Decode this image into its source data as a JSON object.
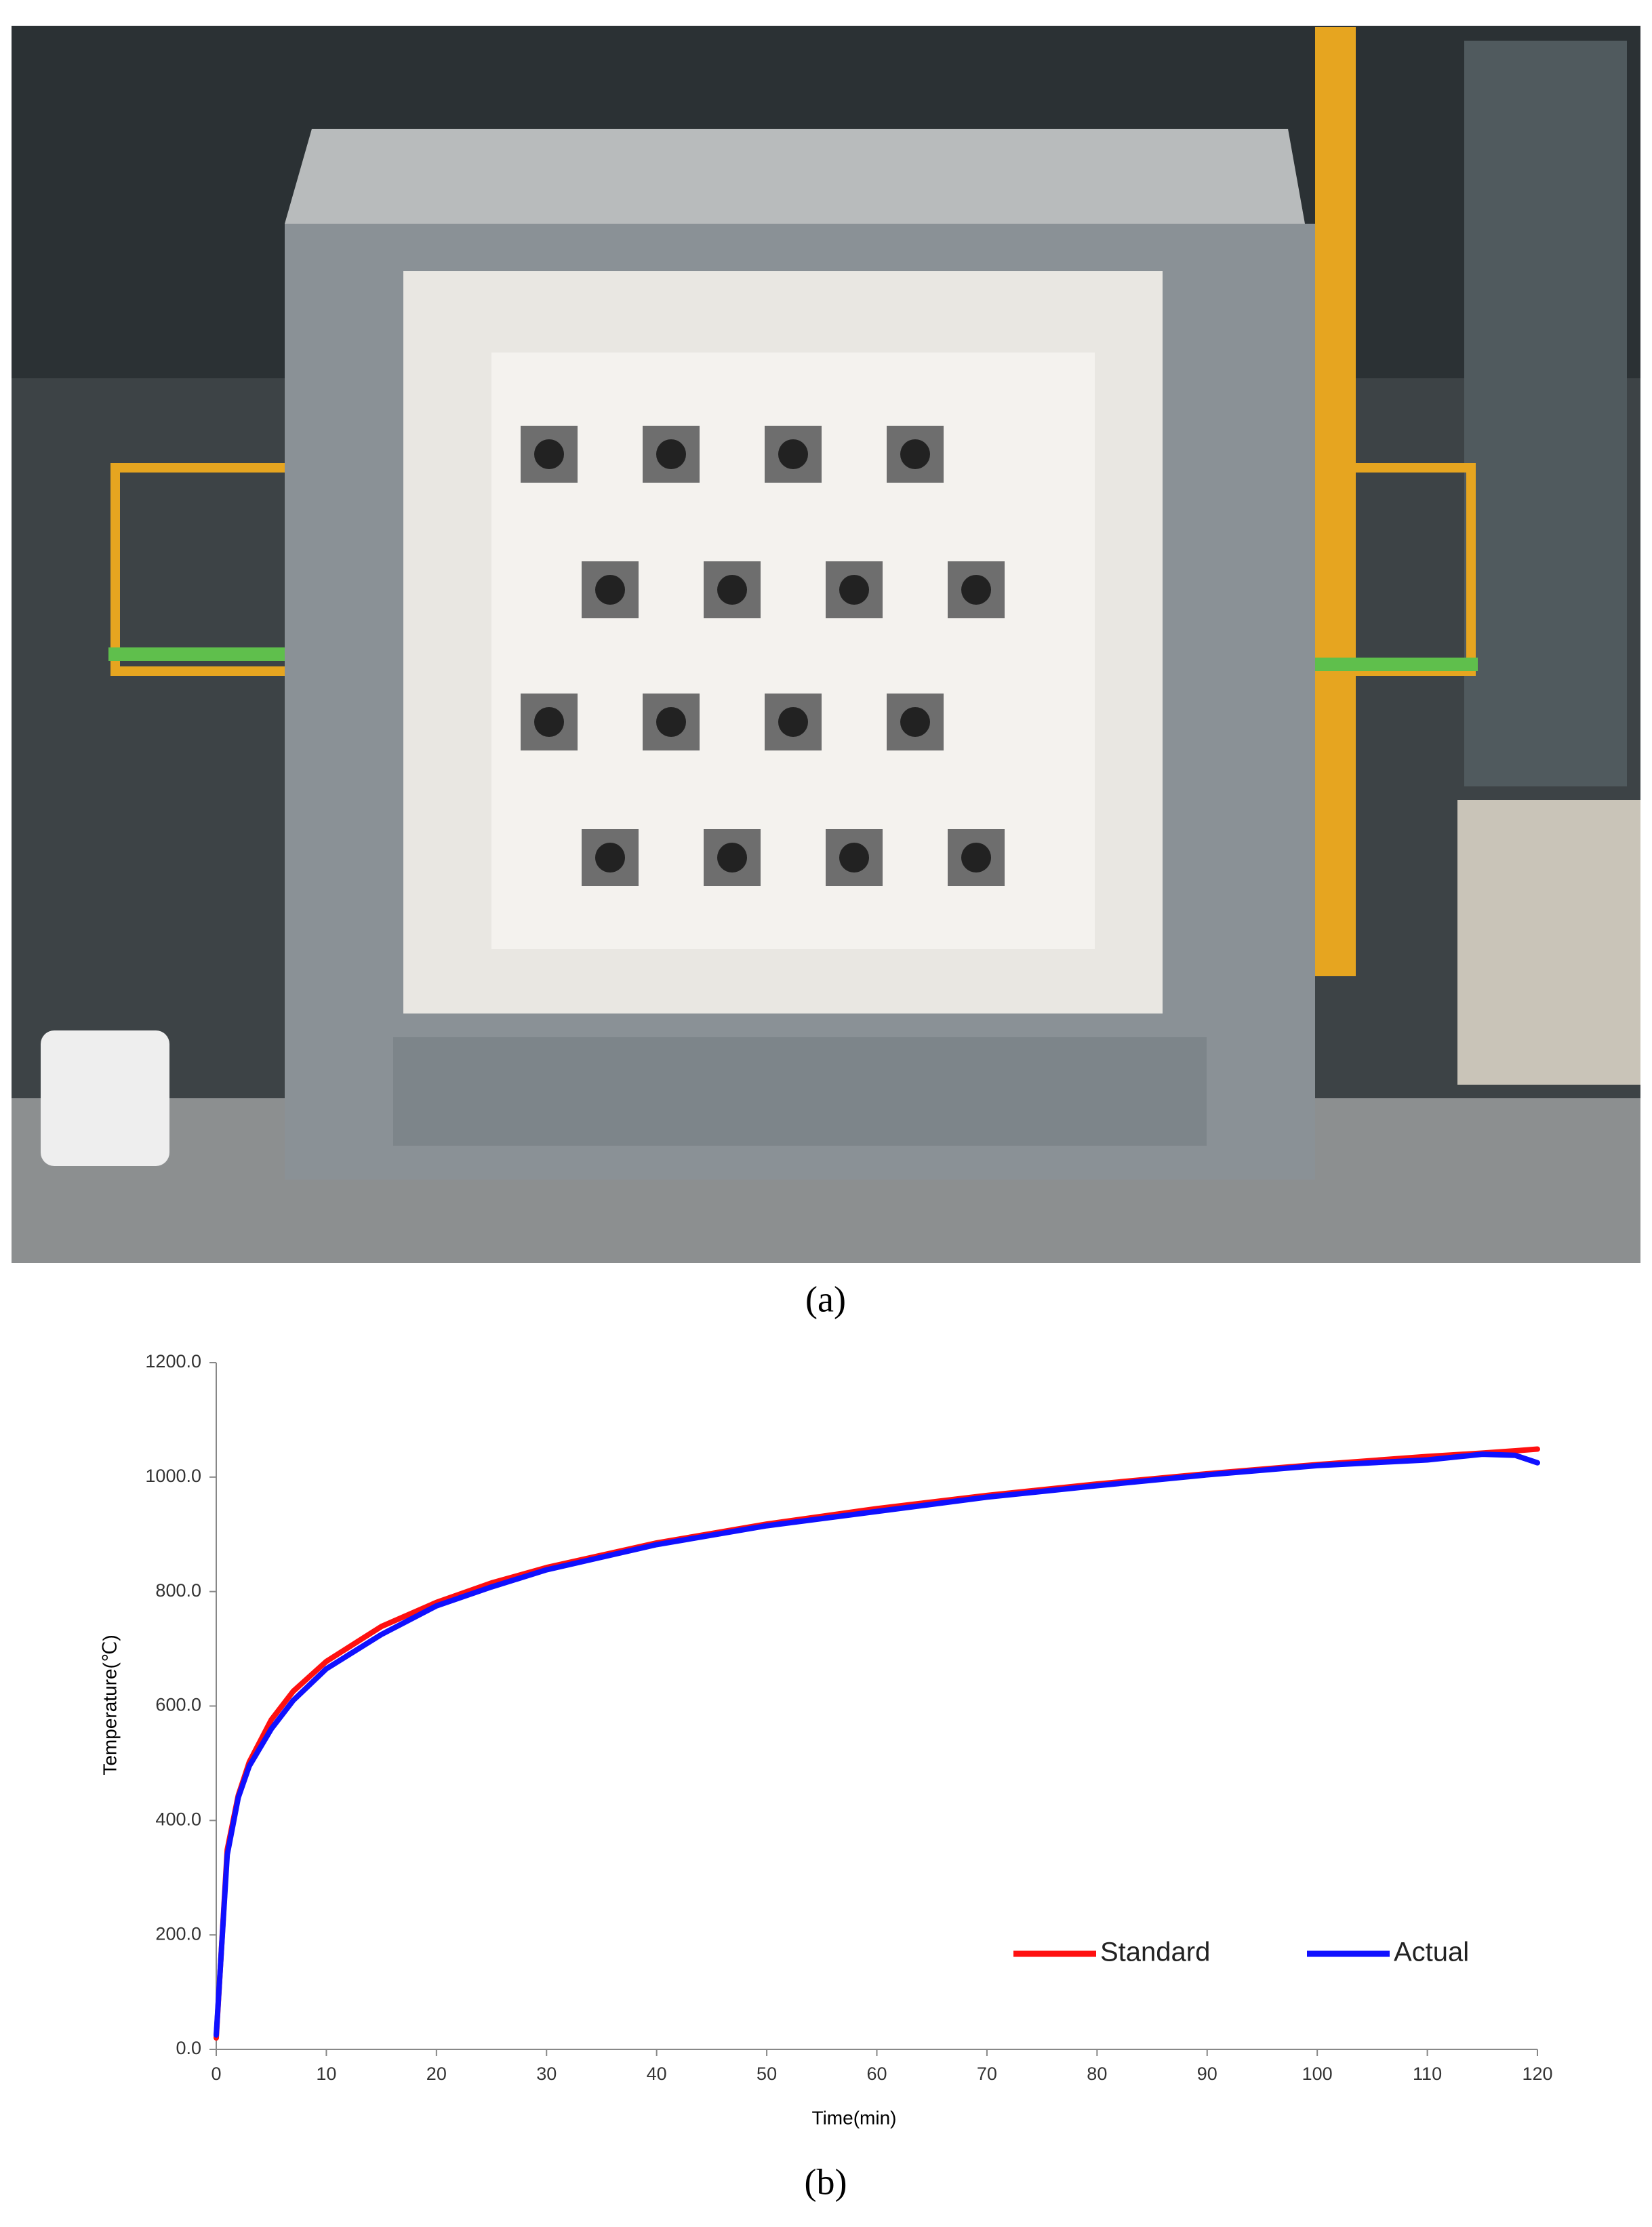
{
  "figure": {
    "caption_a": "(a)",
    "caption_b": "(b)"
  },
  "chart_data": {
    "type": "line",
    "xlabel": "Time(min)",
    "ylabel": "Temperature(℃)",
    "x": [
      0,
      1,
      2,
      3,
      5,
      7,
      10,
      15,
      20,
      25,
      30,
      40,
      50,
      60,
      70,
      80,
      90,
      100,
      110,
      115,
      118,
      120
    ],
    "series": [
      {
        "name": "Standard",
        "color": "#ff1010",
        "values": [
          20,
          349,
          444,
          502,
          576,
          626,
          678,
          739,
          781,
          815,
          842,
          885,
          918,
          945,
          968,
          988,
          1006,
          1022,
          1036,
          1042,
          1046,
          1049
        ]
      },
      {
        "name": "Actual",
        "color": "#1010ff",
        "values": [
          25,
          340,
          440,
          495,
          560,
          610,
          665,
          725,
          775,
          808,
          838,
          882,
          915,
          940,
          965,
          985,
          1004,
          1020,
          1030,
          1040,
          1038,
          1025
        ]
      }
    ],
    "xlim": [
      0,
      120
    ],
    "xticks": [
      0,
      10,
      20,
      30,
      40,
      50,
      60,
      70,
      80,
      90,
      100,
      110,
      120
    ],
    "ylim": [
      0,
      1200
    ],
    "yticks": [
      {
        "value": 0,
        "label": "0.0"
      },
      {
        "value": 200,
        "label": "200.0"
      },
      {
        "value": 400,
        "label": "400.0"
      },
      {
        "value": 600,
        "label": "600.0"
      },
      {
        "value": 800,
        "label": "800.0"
      },
      {
        "value": 1000,
        "label": "1000.0"
      },
      {
        "value": 1200,
        "label": "1200.0"
      }
    ],
    "grid": false,
    "legend": "lower right"
  }
}
